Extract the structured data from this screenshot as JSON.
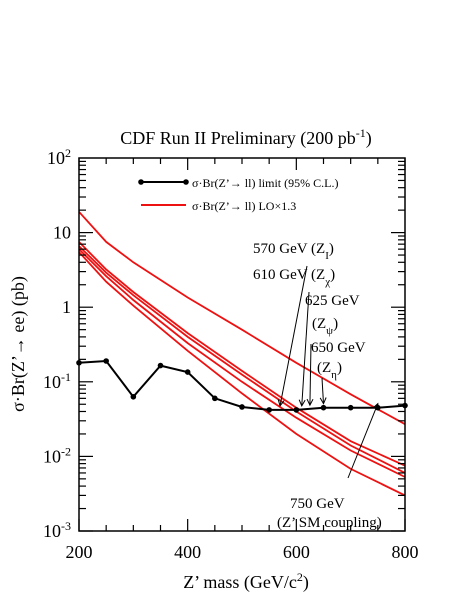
{
  "chart_data": {
    "type": "line",
    "title": "CDF Run II Preliminary (200 pb",
    "title_sup": "-1",
    "title_end": ")",
    "xlabel": "Z’ mass (GeV/c",
    "xlabel_sup": "2",
    "xlabel_end": ")",
    "ylabel": "σ·Br(Z’→ ee) (pb)",
    "xlim": [
      200,
      800
    ],
    "ylim": [
      0.001,
      100
    ],
    "yscale": "log",
    "x_ticks": [
      "200",
      "400",
      "600",
      "800"
    ],
    "y_ticks": [
      {
        "base": "10",
        "exp": "-3",
        "value": 0.001
      },
      {
        "base": "10",
        "exp": "-2",
        "value": 0.01
      },
      {
        "base": "10",
        "exp": "-1",
        "value": 0.1
      },
      {
        "base": "1",
        "exp": "",
        "value": 1
      },
      {
        "base": "10",
        "exp": "",
        "value": 10
      },
      {
        "base": "10",
        "exp": "2",
        "value": 100
      }
    ],
    "legend_position": "top-left",
    "legend": [
      {
        "label": "σ·Br(Z’→ ll) limit (95% C.L.)",
        "style": "black-line-dots"
      },
      {
        "label": "σ·Br(Z’→ ll) LO×1.3",
        "style": "red-line"
      }
    ],
    "limit_series": {
      "x": [
        200,
        250,
        300,
        350,
        400,
        450,
        500,
        550,
        600,
        650,
        700,
        750,
        800
      ],
      "y": [
        0.18,
        0.19,
        0.063,
        0.165,
        0.135,
        0.06,
        0.046,
        0.042,
        0.042,
        0.045,
        0.045,
        0.045,
        0.048
      ]
    },
    "theory_series": [
      {
        "x": [
          200,
          250,
          300,
          400,
          500,
          600,
          700,
          800
        ],
        "y": [
          19,
          7.5,
          4.0,
          1.35,
          0.5,
          0.18,
          0.068,
          0.027
        ]
      },
      {
        "x": [
          200,
          250,
          300,
          400,
          500,
          600,
          700,
          800
        ],
        "y": [
          7.5,
          3.2,
          1.6,
          0.45,
          0.14,
          0.045,
          0.016,
          0.0075
        ]
      },
      {
        "x": [
          200,
          250,
          300,
          400,
          500,
          600,
          700,
          800
        ],
        "y": [
          6.6,
          2.9,
          1.45,
          0.4,
          0.125,
          0.04,
          0.014,
          0.006
        ]
      },
      {
        "x": [
          200,
          250,
          300,
          400,
          500,
          600,
          700,
          800
        ],
        "y": [
          6.0,
          2.6,
          1.25,
          0.33,
          0.1,
          0.033,
          0.012,
          0.0053
        ]
      },
      {
        "x": [
          200,
          250,
          300,
          400,
          500,
          600,
          700,
          800
        ],
        "y": [
          5.5,
          2.2,
          1.05,
          0.26,
          0.07,
          0.02,
          0.0068,
          0.003
        ]
      }
    ],
    "annotations": [
      {
        "lines": [
          {
            "parts": [
              {
                "t": "570 GeV (Z"
              },
              {
                "t": "I",
                "sub": true
              },
              {
                "t": ")"
              }
            ]
          }
        ],
        "arrow_x": 570,
        "arrow_y": 0.042
      },
      {
        "lines": [
          {
            "parts": [
              {
                "t": "610 GeV (Z"
              },
              {
                "t": "χ",
                "sub": true
              },
              {
                "t": ")"
              }
            ]
          }
        ],
        "arrow_x": 610,
        "arrow_y": 0.042
      },
      {
        "lines": [
          {
            "parts": [
              {
                "t": "625 GeV"
              }
            ]
          },
          {
            "parts": [
              {
                "t": "(Z"
              },
              {
                "t": "ψ",
                "sub": true
              },
              {
                "t": ")"
              }
            ]
          }
        ],
        "arrow_x": 625,
        "arrow_y": 0.043
      },
      {
        "lines": [
          {
            "parts": [
              {
                "t": "650 GeV"
              }
            ]
          },
          {
            "parts": [
              {
                "t": "(Z"
              },
              {
                "t": "η",
                "sub": true
              },
              {
                "t": ")"
              }
            ]
          }
        ],
        "arrow_x": 650,
        "arrow_y": 0.045
      },
      {
        "lines": [
          {
            "parts": [
              {
                "t": "750 GeV"
              }
            ]
          },
          {
            "parts": [
              {
                "t": "(Z’ SM coupling)"
              }
            ]
          }
        ],
        "arrow_x": 750,
        "arrow_y": 0.045
      }
    ],
    "colors": {
      "limit": "#000000",
      "theory": "#ee1111"
    }
  }
}
